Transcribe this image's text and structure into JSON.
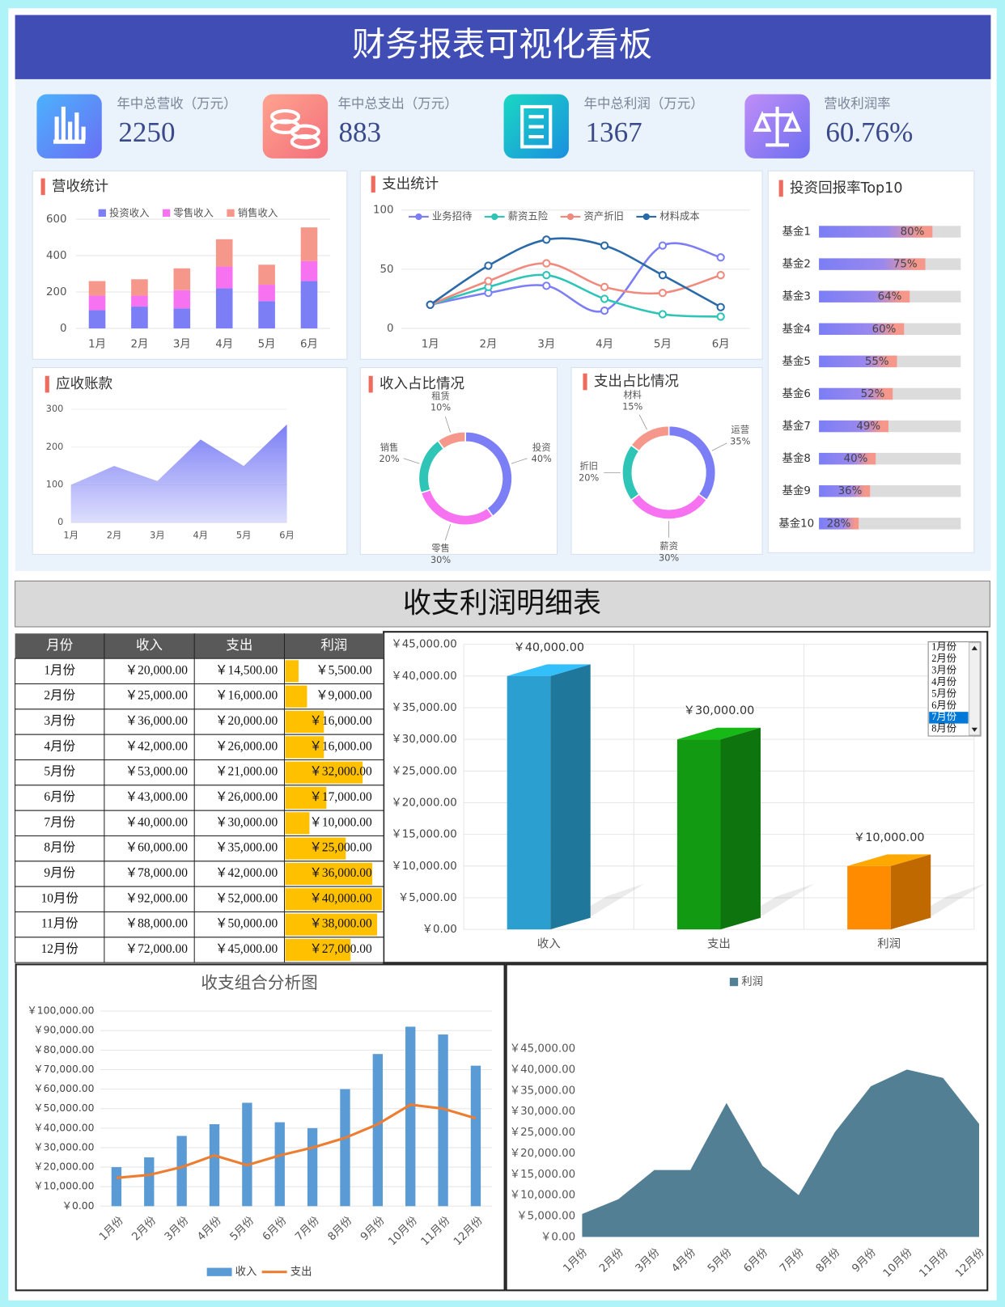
{
  "header": {
    "title": "财务报表可视化看板"
  },
  "kpis": [
    {
      "label": "年中总营收（万元）",
      "value": 2250
    },
    {
      "label": "年中总支出（万元）",
      "value": 883
    },
    {
      "label": "年中总利润（万元）",
      "value": 1367
    },
    {
      "label": "营收利润率",
      "value": 60.76,
      "value_label": "60.76%"
    }
  ],
  "section": {
    "title": "收支利润明细表"
  },
  "table": {
    "columns": [
      "月份",
      "收入",
      "支出",
      "利润"
    ],
    "rows": [
      [
        "1月份",
        "￥20,000.00",
        "￥14,500.00",
        {
          "value": 5500,
          "label": "￥5,500.00"
        }
      ],
      [
        "2月份",
        "￥25,000.00",
        "￥16,000.00",
        {
          "value": 9000,
          "label": "￥9,000.00"
        }
      ],
      [
        "3月份",
        "￥36,000.00",
        "￥20,000.00",
        {
          "value": 16000,
          "label": "￥16,000.00"
        }
      ],
      [
        "4月份",
        "￥42,000.00",
        "￥26,000.00",
        {
          "value": 16000,
          "label": "￥16,000.00"
        }
      ],
      [
        "5月份",
        "￥53,000.00",
        "￥21,000.00",
        {
          "value": 32000,
          "label": "￥32,000.00"
        }
      ],
      [
        "6月份",
        "￥43,000.00",
        "￥26,000.00",
        {
          "value": 17000,
          "label": "￥17,000.00"
        }
      ],
      [
        "7月份",
        "￥40,000.00",
        "￥30,000.00",
        {
          "value": 10000,
          "label": "￥10,000.00"
        }
      ],
      [
        "8月份",
        "￥60,000.00",
        "￥35,000.00",
        {
          "value": 25000,
          "label": "￥25,000.00"
        }
      ],
      [
        "9月份",
        "￥78,000.00",
        "￥42,000.00",
        {
          "value": 36000,
          "label": "￥36,000.00"
        }
      ],
      [
        "10月份",
        "￥92,000.00",
        "￥52,000.00",
        {
          "value": 40000,
          "label": "￥40,000.00"
        }
      ],
      [
        "11月份",
        "￥88,000.00",
        "￥50,000.00",
        {
          "value": 38000,
          "label": "￥38,000.00"
        }
      ],
      [
        "12月份",
        "￥72,000.00",
        "￥45,000.00",
        {
          "value": 27000,
          "label": "￥27,000.00"
        }
      ]
    ],
    "bar_color": "#ffc000"
  },
  "listbox": {
    "items": [
      "1月份",
      "2月份",
      "3月份",
      "4月份",
      "5月份",
      "6月份",
      "7月份",
      "8月份"
    ],
    "selected": 6
  },
  "chart_data": [
    {
      "type": "stacked_bar",
      "title": "营收统计",
      "categories": [
        "1月",
        "2月",
        "3月",
        "4月",
        "5月",
        "6月"
      ],
      "series": [
        {
          "name": "投资收入",
          "color": "#7b7ef5",
          "values": [
            100,
            120,
            110,
            220,
            150,
            260
          ]
        },
        {
          "name": "零售收入",
          "color": "#f772f0",
          "values": [
            80,
            60,
            100,
            120,
            90,
            110
          ]
        },
        {
          "name": "销售收入",
          "color": "#f5978a",
          "values": [
            80,
            90,
            120,
            150,
            110,
            185
          ]
        }
      ],
      "ylim": [
        0,
        600
      ],
      "yticks": [
        0,
        200,
        400,
        600
      ],
      "grid": true
    },
    {
      "type": "line",
      "title": "支出统计",
      "smooth": true,
      "categories": [
        "1月",
        "2月",
        "3月",
        "4月",
        "5月",
        "6月"
      ],
      "series": [
        {
          "name": "业务招待",
          "color": "#7b7ef5",
          "values": [
            20,
            30,
            36,
            15,
            70,
            60
          ]
        },
        {
          "name": "薪资五险",
          "color": "#2ec4b6",
          "values": [
            20,
            35,
            45,
            25,
            12,
            10
          ]
        },
        {
          "name": "资产折旧",
          "color": "#f08a7e",
          "values": [
            20,
            40,
            55,
            35,
            30,
            45
          ]
        },
        {
          "name": "材料成本",
          "color": "#2a6aa8",
          "values": [
            20,
            53,
            75,
            70,
            45,
            18
          ]
        }
      ],
      "ylim": [
        0,
        100
      ],
      "yticks": [
        0,
        50,
        100
      ],
      "grid": true
    },
    {
      "type": "progress",
      "title": "投资回报率Top10",
      "categories": [
        "基金1",
        "基金2",
        "基金3",
        "基金4",
        "基金5",
        "基金6",
        "基金7",
        "基金8",
        "基金9",
        "基金10"
      ],
      "values": [
        80,
        75,
        64,
        60,
        55,
        52,
        49,
        40,
        36,
        28
      ],
      "value_labels": [
        "80%",
        "75%",
        "64%",
        "60%",
        "55%",
        "52%",
        "49%",
        "40%",
        "36%",
        "28%"
      ],
      "xlim": [
        0,
        100
      ]
    },
    {
      "type": "area",
      "title": "应收账款",
      "categories": [
        "1月",
        "2月",
        "3月",
        "4月",
        "5月",
        "6月"
      ],
      "values": [
        100,
        150,
        110,
        220,
        150,
        260
      ],
      "color": "#7b7ef5",
      "ylim": [
        0,
        300
      ],
      "yticks": [
        0,
        100,
        200,
        300
      ],
      "grid": true
    },
    {
      "type": "donut",
      "title": "收入占比情况",
      "categories": [
        "投资",
        "零售",
        "销售",
        "租赁"
      ],
      "values": [
        40,
        30,
        20,
        10
      ],
      "value_labels": [
        "40%",
        "30%",
        "20%",
        "10%"
      ],
      "colors": [
        "#7b7ef5",
        "#f772f0",
        "#2ec4b6",
        "#f5978a"
      ]
    },
    {
      "type": "donut",
      "title": "支出占比情况",
      "categories": [
        "运营",
        "薪资",
        "折旧",
        "材料"
      ],
      "values": [
        35,
        30,
        20,
        15
      ],
      "value_labels": [
        "35%",
        "30%",
        "20%",
        "15%"
      ],
      "colors": [
        "#7b7ef5",
        "#f772f0",
        "#2ec4b6",
        "#f5978a"
      ]
    },
    {
      "type": "bar3d",
      "categories": [
        "收入",
        "支出",
        "利润"
      ],
      "values": [
        40000,
        30000,
        10000
      ],
      "value_labels": [
        "￥40,000.00",
        "￥30,000.00",
        "￥10,000.00"
      ],
      "colors": [
        "#2a9fd0",
        "#129a12",
        "#ff8c00"
      ],
      "ylim": [
        0,
        45000
      ],
      "yticks": [
        {
          "value": 0,
          "label": "￥0.00"
        },
        {
          "value": 5000,
          "label": "￥5,000.00"
        },
        {
          "value": 10000,
          "label": "￥10,000.00"
        },
        {
          "value": 15000,
          "label": "￥15,000.00"
        },
        {
          "value": 20000,
          "label": "￥20,000.00"
        },
        {
          "value": 25000,
          "label": "￥25,000.00"
        },
        {
          "value": 30000,
          "label": "￥30,000.00"
        },
        {
          "value": 35000,
          "label": "￥35,000.00"
        },
        {
          "value": 40000,
          "label": "￥40,000.00"
        },
        {
          "value": 45000,
          "label": "￥45,000.00"
        }
      ],
      "grid": true
    },
    {
      "type": "combo",
      "title": "收支组合分析图",
      "categories": [
        "1月份",
        "2月份",
        "3月份",
        "4月份",
        "5月份",
        "6月份",
        "7月份",
        "8月份",
        "9月份",
        "10月份",
        "11月份",
        "12月份"
      ],
      "series": [
        {
          "name": "收入",
          "kind": "bar",
          "color": "#5b9bd5",
          "values": [
            20000,
            25000,
            36000,
            42000,
            53000,
            43000,
            40000,
            60000,
            78000,
            92000,
            88000,
            72000
          ]
        },
        {
          "name": "支出",
          "kind": "line",
          "color": "#ed7d31",
          "values": [
            14500,
            16000,
            20000,
            26000,
            21000,
            26000,
            30000,
            35000,
            42000,
            52000,
            50000,
            45000
          ]
        }
      ],
      "ylim": [
        0,
        100000
      ],
      "yticks": [
        {
          "value": 0,
          "label": "￥0.00"
        },
        {
          "value": 10000,
          "label": "￥10,000.00"
        },
        {
          "value": 20000,
          "label": "￥20,000.00"
        },
        {
          "value": 30000,
          "label": "￥30,000.00"
        },
        {
          "value": 40000,
          "label": "￥40,000.00"
        },
        {
          "value": 50000,
          "label": "￥50,000.00"
        },
        {
          "value": 60000,
          "label": "￥60,000.00"
        },
        {
          "value": 70000,
          "label": "￥70,000.00"
        },
        {
          "value": 80000,
          "label": "￥80,000.00"
        },
        {
          "value": 90000,
          "label": "￥90,000.00"
        },
        {
          "value": 100000,
          "label": "￥100,000.00"
        }
      ],
      "grid": true,
      "legend": "bottom"
    },
    {
      "type": "area",
      "categories": [
        "1月份",
        "2月份",
        "3月份",
        "4月份",
        "5月份",
        "6月份",
        "7月份",
        "8月份",
        "9月份",
        "10月份",
        "11月份",
        "12月份"
      ],
      "series": [
        {
          "name": "利润",
          "color": "#537f94",
          "values": [
            5500,
            9000,
            16000,
            16000,
            32000,
            17000,
            10000,
            25000,
            36000,
            40000,
            38000,
            27000
          ]
        }
      ],
      "ylim": [
        0,
        45000
      ],
      "yticks": [
        {
          "value": 0,
          "label": "￥0.00"
        },
        {
          "value": 5000,
          "label": "￥5,000.00"
        },
        {
          "value": 10000,
          "label": "￥10,000.00"
        },
        {
          "value": 15000,
          "label": "￥15,000.00"
        },
        {
          "value": 20000,
          "label": "￥20,000.00"
        },
        {
          "value": 25000,
          "label": "￥25,000.00"
        },
        {
          "value": 30000,
          "label": "￥30,000.00"
        },
        {
          "value": 35000,
          "label": "￥35,000.00"
        },
        {
          "value": 40000,
          "label": "￥40,000.00"
        },
        {
          "value": 45000,
          "label": "￥45,000.00"
        }
      ],
      "grid": false,
      "legend": "top"
    }
  ]
}
